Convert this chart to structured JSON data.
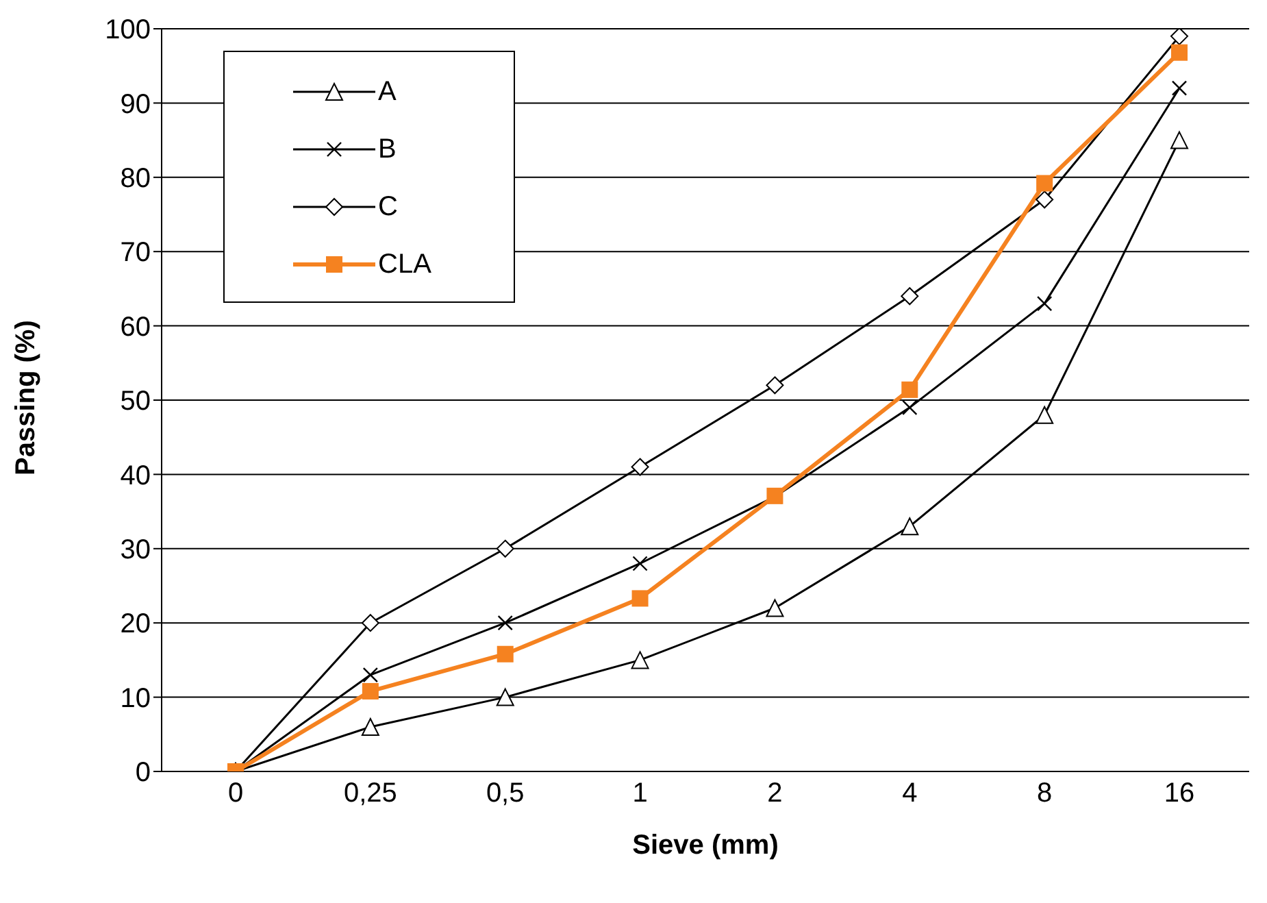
{
  "chart_data": {
    "type": "line",
    "xlabel": "Sieve (mm)",
    "ylabel": "Passing (%)",
    "categories": [
      "0",
      "0,25",
      "0,5",
      "1",
      "2",
      "4",
      "8",
      "16"
    ],
    "series": [
      {
        "name": "A",
        "color": "#000000",
        "marker": "triangle",
        "values": [
          0,
          6,
          10,
          15,
          22,
          33,
          48,
          85
        ]
      },
      {
        "name": "B",
        "color": "#000000",
        "marker": "cross",
        "values": [
          0,
          13,
          20,
          28,
          37,
          49,
          63,
          92
        ]
      },
      {
        "name": "C",
        "color": "#000000",
        "marker": "diamond",
        "values": [
          0,
          20,
          30,
          41,
          52,
          64,
          77,
          99
        ]
      },
      {
        "name": "CLA",
        "color": "#f58220",
        "marker": "square",
        "values": [
          0,
          10.8,
          15.8,
          23.3,
          37.1,
          51.4,
          79.2,
          96.8
        ]
      }
    ],
    "ylim": [
      0,
      100
    ],
    "yticks": [
      0,
      10,
      20,
      30,
      40,
      50,
      60,
      70,
      80,
      90,
      100
    ],
    "grid": "y",
    "legend": "top left",
    "line_style": "solid"
  }
}
